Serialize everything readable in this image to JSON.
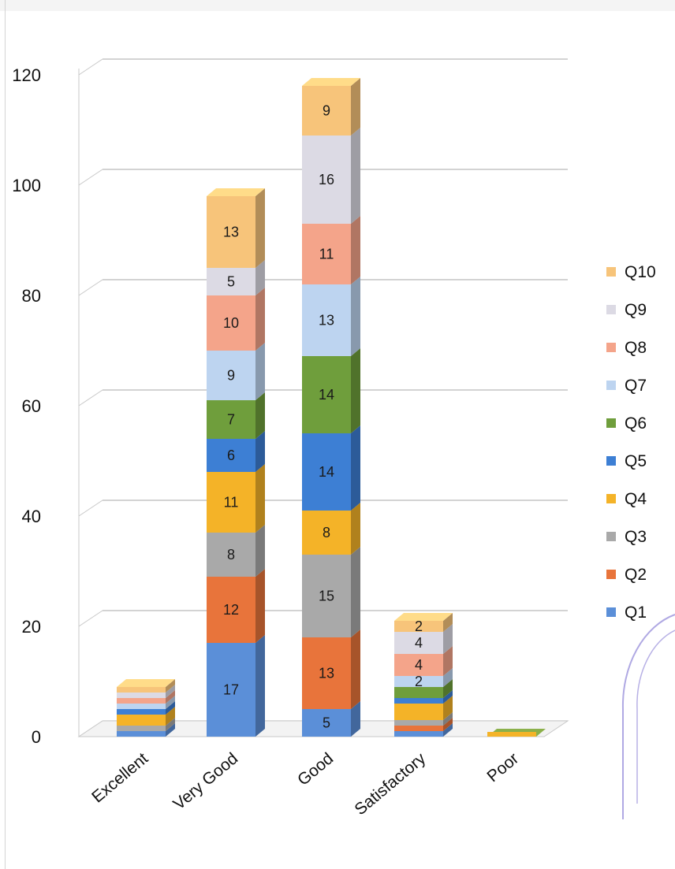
{
  "chart_data": {
    "type": "bar",
    "stacked": true,
    "style": "3d-stacked-column",
    "categories": [
      "Excellent",
      "Very Good",
      "Good",
      "Satisfactory",
      "Poor"
    ],
    "ylim": [
      0,
      120
    ],
    "yticks": [
      0,
      20,
      40,
      60,
      80,
      100,
      120
    ],
    "grid": true,
    "legend_position": "right",
    "series": [
      {
        "name": "Q1",
        "color": "#5b8fd8",
        "values": [
          1,
          17,
          5,
          1,
          0
        ]
      },
      {
        "name": "Q2",
        "color": "#e8743b",
        "values": [
          0,
          12,
          13,
          1,
          0
        ]
      },
      {
        "name": "Q3",
        "color": "#a9a9a9",
        "values": [
          1,
          8,
          15,
          1,
          0
        ]
      },
      {
        "name": "Q4",
        "color": "#f4b328",
        "values": [
          2,
          11,
          8,
          3,
          0
        ]
      },
      {
        "name": "Q5",
        "color": "#3d7fd4",
        "values": [
          1,
          6,
          14,
          1,
          0
        ]
      },
      {
        "name": "Q6",
        "color": "#6f9e3c",
        "values": [
          0,
          7,
          14,
          2,
          0
        ]
      },
      {
        "name": "Q7",
        "color": "#bdd4f0",
        "values": [
          1,
          9,
          13,
          2,
          0
        ]
      },
      {
        "name": "Q8",
        "color": "#f4a48a",
        "values": [
          1,
          10,
          11,
          4,
          0
        ]
      },
      {
        "name": "Q9",
        "color": "#dcdae4",
        "values": [
          1,
          5,
          16,
          4,
          0
        ]
      },
      {
        "name": "Q10",
        "color": "#f7c47a",
        "values": [
          1,
          13,
          9,
          2,
          0
        ]
      }
    ],
    "data_labels": [
      {
        "category": "Very Good",
        "series": "Q1",
        "text": "17"
      },
      {
        "category": "Very Good",
        "series": "Q2",
        "text": "12"
      },
      {
        "category": "Very Good",
        "series": "Q3",
        "text": "8"
      },
      {
        "category": "Very Good",
        "series": "Q4",
        "text": "11"
      },
      {
        "category": "Very Good",
        "series": "Q5",
        "text": "6"
      },
      {
        "category": "Very Good",
        "series": "Q6",
        "text": "7"
      },
      {
        "category": "Very Good",
        "series": "Q7",
        "text": "9"
      },
      {
        "category": "Very Good",
        "series": "Q8",
        "text": "10"
      },
      {
        "category": "Very Good",
        "series": "Q9",
        "text": "5"
      },
      {
        "category": "Very Good",
        "series": "Q10",
        "text": "13"
      },
      {
        "category": "Good",
        "series": "Q1",
        "text": "5"
      },
      {
        "category": "Good",
        "series": "Q2",
        "text": "13"
      },
      {
        "category": "Good",
        "series": "Q3",
        "text": "15"
      },
      {
        "category": "Good",
        "series": "Q4",
        "text": "8"
      },
      {
        "category": "Good",
        "series": "Q5",
        "text": "14"
      },
      {
        "category": "Good",
        "series": "Q6",
        "text": "14"
      },
      {
        "category": "Good",
        "series": "Q7",
        "text": "13"
      },
      {
        "category": "Good",
        "series": "Q8",
        "text": "11"
      },
      {
        "category": "Good",
        "series": "Q9",
        "text": "16"
      },
      {
        "category": "Good",
        "series": "Q10",
        "text": "9"
      },
      {
        "category": "Satisfactory",
        "series": "Q8",
        "text": "4"
      },
      {
        "category": "Satisfactory",
        "series": "Q9",
        "text": "4"
      },
      {
        "category": "Satisfactory",
        "series": "Q10",
        "text": "2"
      },
      {
        "category": "Satisfactory",
        "series": "Q7",
        "text": "2"
      }
    ]
  }
}
